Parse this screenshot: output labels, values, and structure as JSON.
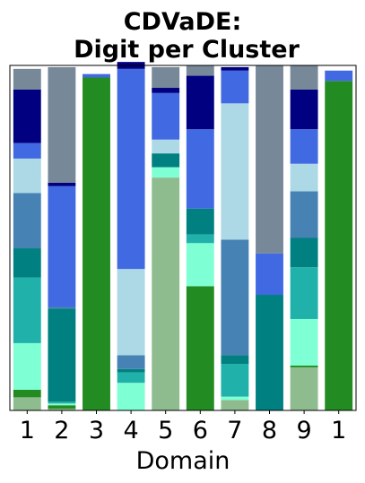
{
  "chart_data": {
    "type": "bar",
    "stacked": true,
    "normalized": true,
    "title_lines": [
      "CDVaDE:",
      "Digit per Cluster"
    ],
    "xlabel": "Domain",
    "ylabel": "",
    "ylim": [
      0,
      1
    ],
    "grid": false,
    "legend": "none",
    "categories": [
      "1",
      "2",
      "3",
      "4",
      "5",
      "6",
      "7",
      "8",
      "9",
      "1"
    ],
    "segment_colors": [
      "#8fbc8f",
      "#228b22",
      "#7fffd4",
      "#20b2aa",
      "#008080",
      "#4682b4",
      "#add8e6",
      "#4169e1",
      "#000080",
      "#778899"
    ],
    "series": [
      {
        "values": [
          0.038,
          0.005,
          0.0,
          0.0,
          0.675,
          0.0,
          0.03,
          0.0,
          0.125,
          0.0
        ]
      },
      {
        "values": [
          0.022,
          0.01,
          0.965,
          0.0,
          0.0,
          0.36,
          0.0,
          0.0,
          0.005,
          0.955
        ]
      },
      {
        "values": [
          0.135,
          0.005,
          0.0,
          0.08,
          0.03,
          0.125,
          0.01,
          0.0,
          0.135,
          0.0
        ]
      },
      {
        "values": [
          0.19,
          0.005,
          0.0,
          0.03,
          0.0,
          0.025,
          0.095,
          0.0,
          0.15,
          0.0
        ]
      },
      {
        "values": [
          0.085,
          0.27,
          0.0,
          0.01,
          0.04,
          0.075,
          0.025,
          0.335,
          0.085,
          0.0
        ]
      },
      {
        "values": [
          0.16,
          0.005,
          0.0,
          0.04,
          0.0,
          0.0,
          0.335,
          0.0,
          0.135,
          0.0
        ]
      },
      {
        "values": [
          0.1,
          0.0,
          0.0,
          0.25,
          0.04,
          0.0,
          0.395,
          0.0,
          0.08,
          0.0
        ]
      },
      {
        "values": [
          0.045,
          0.35,
          0.01,
          0.58,
          0.135,
          0.23,
          0.095,
          0.12,
          0.1,
          0.03
        ]
      },
      {
        "values": [
          0.155,
          0.01,
          0.0,
          0.02,
          0.015,
          0.155,
          0.01,
          0.0,
          0.115,
          0.0
        ]
      },
      {
        "values": [
          0.06,
          0.335,
          0.0,
          0.0,
          0.06,
          0.03,
          0.0,
          0.545,
          0.07,
          0.0
        ]
      }
    ]
  }
}
